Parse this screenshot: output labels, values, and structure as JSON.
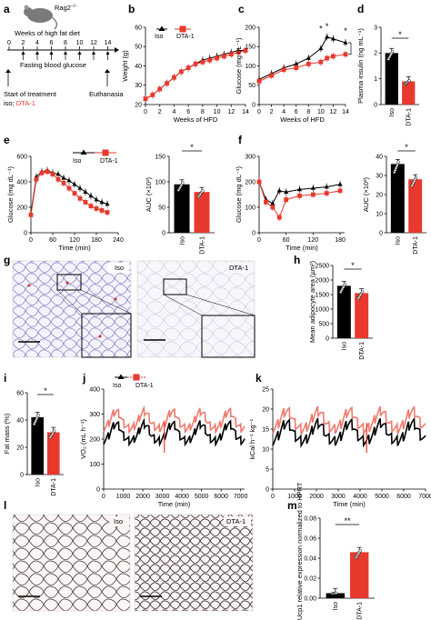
{
  "panel_labels": {
    "a": "a",
    "b": "b",
    "c": "c",
    "d": "d",
    "e": "e",
    "f": "f",
    "g": "g",
    "h": "h",
    "i": "i",
    "j": "j",
    "k": "k",
    "l": "l",
    "m": "m"
  },
  "colors": {
    "iso": "#000000",
    "dta": "#e8392e",
    "dta_light": "#ee7a6e",
    "histo_purple": "#6a64b8",
    "histo_pink": "#b56a78"
  },
  "panel_a": {
    "mouse_label": "Rag2",
    "mouse_label_sup": "−/−",
    "title": "Weeks of high fat diet",
    "weeks": [
      "0",
      "2",
      "4",
      "6",
      "8",
      "10",
      "12",
      "14"
    ],
    "fasting": "Fasting blood glucose",
    "start": "Start of treatment",
    "treatment_prefix": "iso; ",
    "treatment_dta": "DTA-1",
    "euthanasia": "Euthanasia"
  },
  "legend": {
    "iso": "Iso",
    "dta": "DTA-1"
  },
  "panel_h": {
    "label_iso": "Iso",
    "label_dta": "DTA-1"
  },
  "panel_g": {
    "inset_iso": "Iso",
    "inset_dta": "DTA-1"
  },
  "panel_l": {
    "inset_iso": "Iso",
    "inset_dta": "DTA-1"
  },
  "chart_data": [
    {
      "id": "b",
      "type": "line",
      "xlabel": "Weeks of HFD",
      "ylabel": "Weight (g)",
      "xlim": [
        0,
        14
      ],
      "ylim": [
        20,
        60
      ],
      "xticks": [
        0,
        2,
        4,
        6,
        8,
        10,
        12,
        14
      ],
      "yticks": [
        20,
        30,
        40,
        50,
        60
      ],
      "series": [
        {
          "name": "Iso",
          "x": [
            0,
            1,
            2,
            3,
            4,
            5,
            6,
            7,
            8,
            9,
            10,
            11,
            12,
            13,
            14
          ],
          "values": [
            23,
            25,
            28,
            31,
            34,
            37,
            39,
            41,
            43,
            44,
            45,
            46,
            47,
            48,
            48
          ]
        },
        {
          "name": "DTA-1",
          "x": [
            0,
            1,
            2,
            3,
            4,
            5,
            6,
            7,
            8,
            9,
            10,
            11,
            12,
            13,
            14
          ],
          "values": [
            23,
            25,
            28,
            31,
            34,
            37,
            39,
            41,
            42,
            43,
            44,
            45,
            46,
            47,
            48
          ]
        }
      ]
    },
    {
      "id": "c",
      "type": "line",
      "xlabel": "Weeks of HFD",
      "ylabel": "Glucose (mg dL⁻¹)",
      "xlim": [
        0,
        14
      ],
      "ylim": [
        0,
        200
      ],
      "xticks": [
        0,
        2,
        4,
        6,
        8,
        10,
        12,
        14
      ],
      "yticks": [
        0,
        50,
        100,
        150,
        200
      ],
      "series": [
        {
          "name": "Iso",
          "x": [
            0,
            2,
            4,
            6,
            8,
            10,
            11,
            12,
            14
          ],
          "values": [
            65,
            80,
            95,
            105,
            120,
            145,
            175,
            170,
            160
          ]
        },
        {
          "name": "DTA-1",
          "x": [
            0,
            2,
            4,
            6,
            8,
            10,
            11,
            12,
            14
          ],
          "values": [
            60,
            75,
            90,
            95,
            105,
            110,
            120,
            125,
            130
          ]
        }
      ],
      "annotations": [
        "*",
        "*",
        "*"
      ]
    },
    {
      "id": "d",
      "type": "bar",
      "ylabel": "Plasma insulin (ng mL⁻¹)",
      "ylim": [
        0,
        3
      ],
      "yticks": [
        0,
        1,
        2,
        3
      ],
      "categories": [
        "Iso",
        "DTA-1"
      ],
      "values": [
        2.0,
        0.9
      ],
      "annotations": [
        "*"
      ]
    },
    {
      "id": "e_line",
      "type": "line",
      "xlabel": "Time (min)",
      "ylabel": "Glucose (mg dL⁻¹)",
      "xlim": [
        0,
        240
      ],
      "ylim": [
        0,
        600
      ],
      "xticks": [
        0,
        60,
        120,
        180,
        240
      ],
      "yticks": [
        0,
        200,
        400,
        600
      ],
      "series": [
        {
          "name": "Iso",
          "x": [
            0,
            15,
            30,
            45,
            60,
            75,
            90,
            105,
            120,
            135,
            150,
            165,
            180,
            195,
            210
          ],
          "values": [
            150,
            440,
            480,
            490,
            470,
            460,
            430,
            410,
            380,
            350,
            320,
            290,
            260,
            240,
            225
          ]
        },
        {
          "name": "DTA-1",
          "x": [
            0,
            15,
            30,
            45,
            60,
            75,
            90,
            105,
            120,
            135,
            150,
            165,
            180,
            195,
            210
          ],
          "values": [
            140,
            420,
            470,
            480,
            460,
            420,
            390,
            350,
            310,
            270,
            240,
            210,
            190,
            175,
            160
          ]
        }
      ]
    },
    {
      "id": "e_auc",
      "type": "bar",
      "ylabel": "AUC (×10³)",
      "ylim": [
        0,
        150
      ],
      "yticks": [
        0,
        50,
        100,
        150
      ],
      "categories": [
        "Iso",
        "DTA-1"
      ],
      "values": [
        95,
        80
      ],
      "annotations": [
        "*"
      ]
    },
    {
      "id": "f_line",
      "type": "line",
      "xlabel": "Time (min)",
      "ylabel": "Glucose (mg dL⁻¹)",
      "xlim": [
        0,
        190
      ],
      "ylim": [
        0,
        300
      ],
      "xticks": [
        0,
        60,
        120,
        180
      ],
      "yticks": [
        0,
        100,
        200,
        300
      ],
      "series": [
        {
          "name": "Iso",
          "x": [
            0,
            15,
            30,
            45,
            60,
            90,
            120,
            150,
            180
          ],
          "values": [
            200,
            130,
            115,
            165,
            160,
            170,
            175,
            180,
            190
          ]
        },
        {
          "name": "DTA-1",
          "x": [
            0,
            15,
            30,
            45,
            60,
            90,
            120,
            150,
            180
          ],
          "values": [
            200,
            120,
            100,
            60,
            130,
            145,
            150,
            155,
            165
          ]
        }
      ]
    },
    {
      "id": "f_auc",
      "type": "bar",
      "ylabel": "AUC (×10³)",
      "ylim": [
        0,
        40
      ],
      "yticks": [
        0,
        10,
        20,
        30,
        40
      ],
      "categories": [
        "Iso",
        "DTA-1"
      ],
      "values": [
        36,
        28
      ],
      "annotations": [
        "*"
      ]
    },
    {
      "id": "h",
      "type": "bar",
      "ylabel": "Mean adipocyte area (µm²)",
      "ylim": [
        0,
        2500
      ],
      "yticks": [
        0,
        500,
        1000,
        1500,
        2000,
        2500
      ],
      "categories": [
        "Iso",
        "DTA-1"
      ],
      "values": [
        1800,
        1550
      ],
      "annotations": [
        "*"
      ]
    },
    {
      "id": "i",
      "type": "bar",
      "ylabel": "Fat mass (%)",
      "ylim": [
        0,
        60
      ],
      "yticks": [
        0,
        20,
        40,
        60
      ],
      "categories": [
        "Iso",
        "DTA-1"
      ],
      "values": [
        42,
        31
      ],
      "annotations": [
        "*"
      ]
    },
    {
      "id": "j",
      "type": "line",
      "xlabel": "Time (min)",
      "ylabel": "VO₂ (mL h⁻¹)",
      "xlim": [
        0,
        7200
      ],
      "ylim": [
        0,
        400
      ],
      "xticks": [
        0,
        1000,
        2000,
        3000,
        4000,
        5000,
        6000,
        7000
      ],
      "yticks": [
        0,
        100,
        200,
        300,
        400
      ],
      "series": [
        {
          "name": "Iso"
        },
        {
          "name": "DTA-1"
        }
      ]
    },
    {
      "id": "k",
      "type": "line",
      "xlabel": "Time (min)",
      "ylabel": "kCal h⁻¹ kg⁻¹",
      "xlim": [
        0,
        7000
      ],
      "ylim": [
        0,
        25
      ],
      "xticks": [
        0,
        1000,
        2000,
        3000,
        4000,
        5000,
        6000,
        7000
      ],
      "yticks": [
        0,
        5,
        10,
        15,
        20,
        25
      ],
      "series": [
        {
          "name": "Iso"
        },
        {
          "name": "DTA-1"
        }
      ]
    },
    {
      "id": "m",
      "type": "bar",
      "ylabel": "VAT Ucp1 relative expression normalized to HPRT",
      "ylim": [
        0,
        0.08
      ],
      "yticks": [
        0,
        0.02,
        0.04,
        0.06,
        0.08
      ],
      "categories": [
        "Iso",
        "DTA-1"
      ],
      "values": [
        0.005,
        0.046
      ],
      "annotations": [
        "**"
      ]
    }
  ]
}
